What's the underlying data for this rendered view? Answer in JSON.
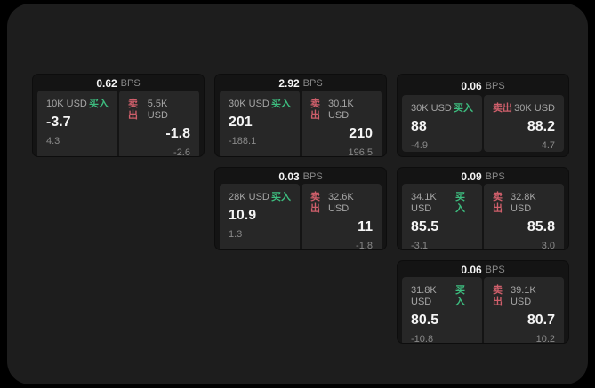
{
  "labels": {
    "bps": "BPS",
    "buy": "买入",
    "sell": "卖出"
  },
  "colors": {
    "page_bg": "#000000",
    "container_bg": "#1d1d1d",
    "card_bg": "#141414",
    "panel_bg": "#272727",
    "buy_green": "#3dbd7f",
    "sell_red": "#cf5f6b",
    "value_white": "#f5f5f5",
    "muted_gray": "#8a8a8a",
    "label_gray": "#a6a6a6"
  },
  "cards": [
    {
      "bps": "0.62",
      "row": 1,
      "col": 1,
      "buy": {
        "amount": "10K USD",
        "value": "-3.7",
        "delta": "4.3"
      },
      "sell": {
        "amount": "5.5K USD",
        "value": "-1.8",
        "delta": "-2.6"
      }
    },
    {
      "bps": "2.92",
      "row": 1,
      "col": 2,
      "buy": {
        "amount": "30K USD",
        "value": "201",
        "delta": "-188.1"
      },
      "sell": {
        "amount": "30.1K USD",
        "value": "210",
        "delta": "196.5"
      }
    },
    {
      "bps": "0.06",
      "row": 1,
      "col": 3,
      "buy": {
        "amount": "30K USD",
        "value": "88",
        "delta": "-4.9"
      },
      "sell": {
        "amount": "30K USD",
        "value": "88.2",
        "delta": "4.7"
      }
    },
    {
      "bps": "0.03",
      "row": 2,
      "col": 2,
      "buy": {
        "amount": "28K USD",
        "value": "10.9",
        "delta": "1.3"
      },
      "sell": {
        "amount": "32.6K USD",
        "value": "11",
        "delta": "-1.8"
      }
    },
    {
      "bps": "0.09",
      "row": 2,
      "col": 3,
      "buy": {
        "amount": "34.1K USD",
        "value": "85.5",
        "delta": "-3.1"
      },
      "sell": {
        "amount": "32.8K USD",
        "value": "85.8",
        "delta": "3.0"
      }
    },
    {
      "bps": "0.06",
      "row": 3,
      "col": 3,
      "buy": {
        "amount": "31.8K USD",
        "value": "80.5",
        "delta": "-10.8"
      },
      "sell": {
        "amount": "39.1K USD",
        "value": "80.7",
        "delta": "10.2"
      }
    }
  ]
}
